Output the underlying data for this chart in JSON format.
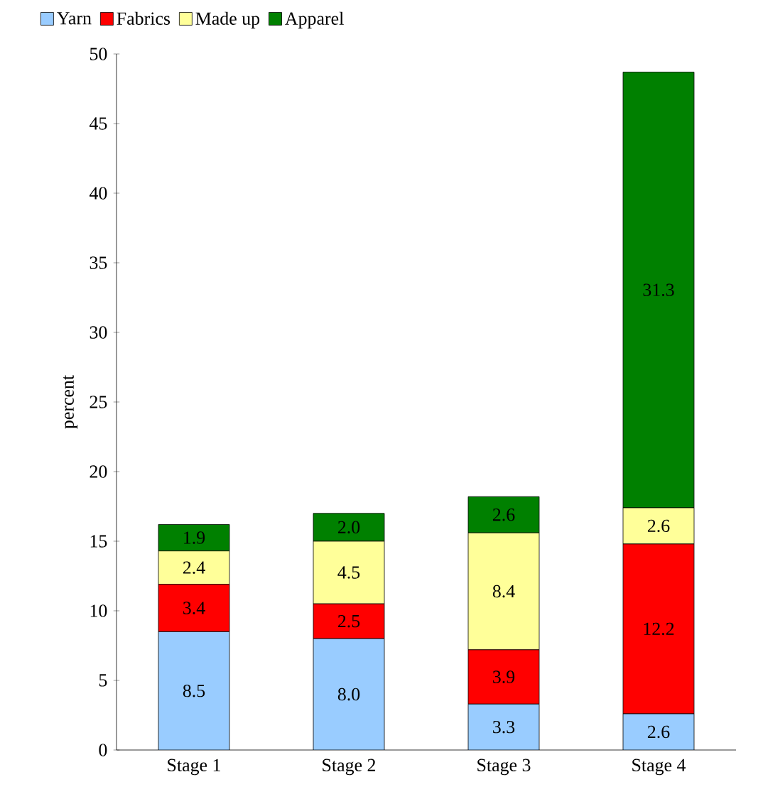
{
  "chart_data": {
    "type": "bar",
    "stacked": true,
    "ylabel": "percent",
    "categories": [
      "Stage 1",
      "Stage 2",
      "Stage 3",
      "Stage 4"
    ],
    "series": [
      {
        "name": "Yarn",
        "color": "#99ccff",
        "values": [
          8.5,
          8.0,
          3.3,
          2.6
        ],
        "value_labels": [
          "8.5",
          "8.0",
          "3.3",
          "2.6"
        ]
      },
      {
        "name": "Fabrics",
        "color": "#ff0000",
        "values": [
          3.4,
          2.5,
          3.9,
          12.2
        ],
        "value_labels": [
          "3.4",
          "2.5",
          "3.9",
          "12.2"
        ]
      },
      {
        "name": "Made up",
        "color": "#ffff99",
        "values": [
          2.4,
          4.5,
          8.4,
          2.6
        ],
        "value_labels": [
          "2.4",
          "4.5",
          "8.4",
          "2.6"
        ]
      },
      {
        "name": "Apparel",
        "color": "#008000",
        "values": [
          1.9,
          2.0,
          2.6,
          31.3
        ],
        "value_labels": [
          "1.9",
          "2.0",
          "2.6",
          "31.3"
        ]
      }
    ],
    "ylim": [
      0,
      50
    ],
    "yticks": [
      0,
      5,
      10,
      15,
      20,
      25,
      30,
      35,
      40,
      45,
      50
    ],
    "legend": "top left",
    "grid": false
  }
}
